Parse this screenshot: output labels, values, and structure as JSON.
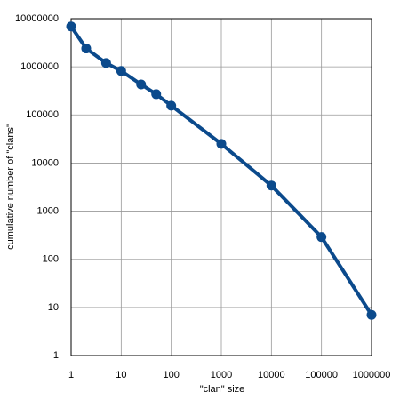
{
  "chart_data": {
    "type": "line",
    "x_label": "\"clan\" size",
    "y_label": "cumulative number of \"clans\"",
    "x": [
      1,
      2,
      5,
      10,
      25,
      50,
      100,
      1000,
      10000,
      100000,
      1000000
    ],
    "series": [
      {
        "color": "#0b4a8c",
        "values": [
          6900000,
          2400000,
          1200000,
          820000,
          430000,
          270000,
          156000,
          25000,
          3400,
          290,
          7
        ]
      }
    ],
    "xscale": "log",
    "yscale": "log",
    "xlim": [
      1,
      1000000
    ],
    "ylim": [
      1,
      10000000
    ],
    "xticks": [
      1,
      10,
      100,
      1000,
      10000,
      100000,
      1000000
    ],
    "yticks": [
      1,
      10,
      100,
      1000,
      10000,
      100000,
      1000000,
      10000000
    ],
    "grid": true
  }
}
